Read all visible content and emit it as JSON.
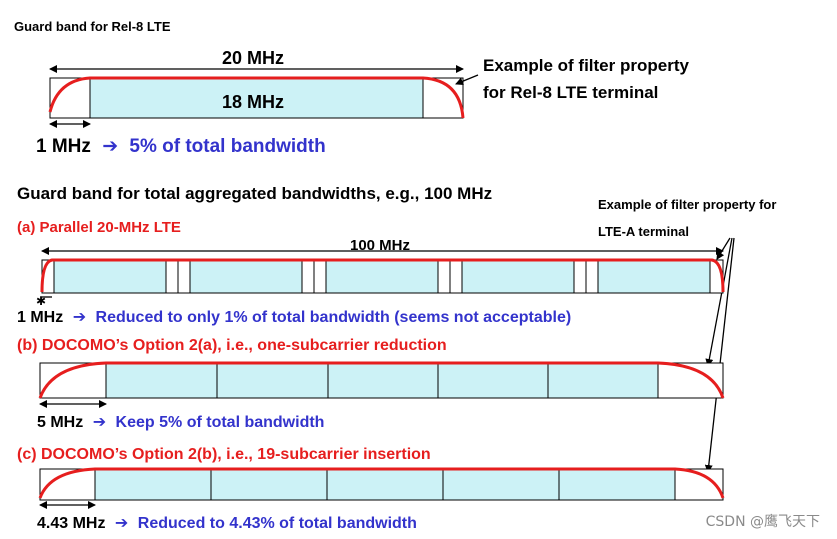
{
  "top": {
    "heading": "Guard band for Rel-8 LTE",
    "total_bw": "20 MHz",
    "inner_bw": "18 MHz",
    "filter_note_line1": "Example of filter property",
    "filter_note_line2": "for Rel-8 LTE terminal",
    "guard_value": "1 MHz",
    "guard_arrow": "➔",
    "guard_text": "5% of total bandwidth"
  },
  "aggregated": {
    "heading": "Guard band for total aggregated bandwidths, e.g., 100 MHz",
    "filter_note_line1": "Example of filter property for",
    "filter_note_line2": "LTE-A terminal"
  },
  "option_a": {
    "title": "(a) Parallel 20-MHz LTE",
    "total_bw": "100 MHz",
    "guard_value": "1 MHz",
    "arrow": "➔",
    "guard_text": "Reduced to only 1% of total bandwidth (seems not acceptable)"
  },
  "option_b": {
    "title": "(b) DOCOMO’s Option 2(a), i.e., one-subcarrier reduction",
    "guard_value": "5 MHz",
    "arrow": "➔",
    "guard_text": "Keep 5% of total bandwidth"
  },
  "option_c": {
    "title": "(c) DOCOMO’s Option 2(b), i.e., 19-subcarrier insertion",
    "guard_value": "4.43 MHz",
    "arrow": "➔",
    "guard_text": "Reduced to 4.43% of total bandwidth"
  },
  "watermark": "CSDN @鹰飞天下",
  "colors": {
    "accent_red": "#e61e1e",
    "text_blue": "#3333cc",
    "band_fill": "#ccf2f6"
  }
}
